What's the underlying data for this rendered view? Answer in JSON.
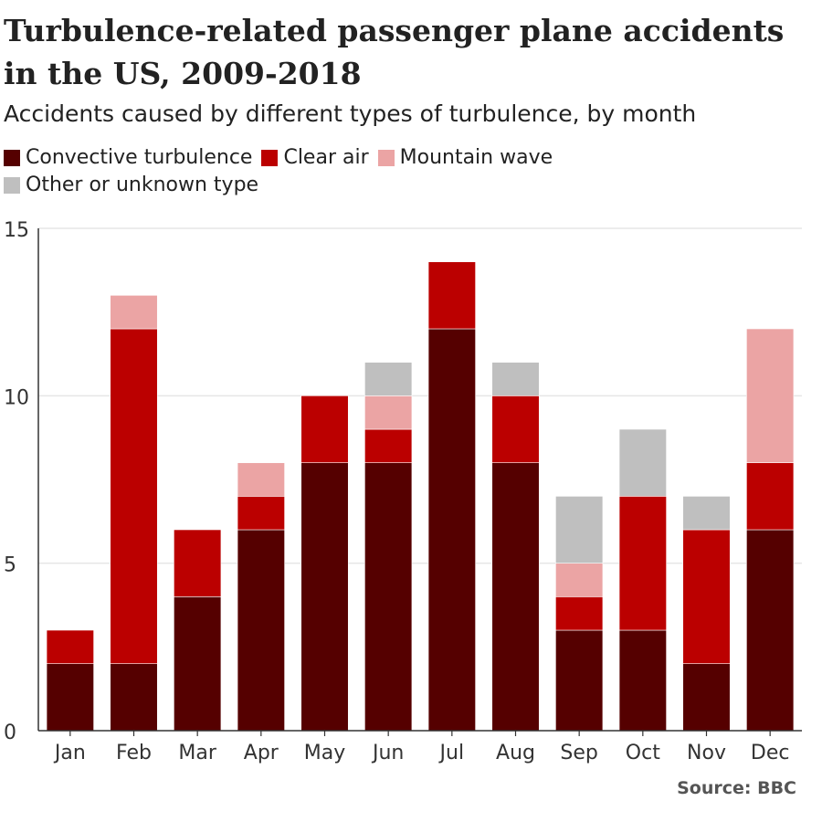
{
  "title": "Turbulence-related passenger plane accidents in the US, 2009-2018",
  "subtitle": "Accidents caused by different types of turbulence, by month",
  "source": "Source: BBC",
  "chart_data": {
    "type": "bar",
    "stacked": true,
    "categories": [
      "Jan",
      "Feb",
      "Mar",
      "Apr",
      "May",
      "Jun",
      "Jul",
      "Aug",
      "Sep",
      "Oct",
      "Nov",
      "Dec"
    ],
    "series": [
      {
        "name": "Convective turbulence",
        "color": "#550000",
        "values": [
          2,
          2,
          4,
          6,
          8,
          8,
          12,
          8,
          3,
          3,
          2,
          6
        ]
      },
      {
        "name": "Clear air",
        "color": "#bb0000",
        "values": [
          1,
          10,
          2,
          1,
          2,
          1,
          2,
          2,
          1,
          4,
          4,
          2
        ]
      },
      {
        "name": "Mountain wave",
        "color": "#eba4a4",
        "values": [
          0,
          1,
          0,
          1,
          0,
          1,
          0,
          0,
          1,
          0,
          0,
          4
        ]
      },
      {
        "name": "Other or unknown type",
        "color": "#bfbfbf",
        "values": [
          0,
          0,
          0,
          0,
          0,
          1,
          0,
          1,
          2,
          2,
          1,
          0
        ]
      }
    ],
    "ylim": [
      0,
      15
    ],
    "yticks": [
      0,
      5,
      10,
      15
    ],
    "grid": true,
    "legend_position": "top"
  }
}
